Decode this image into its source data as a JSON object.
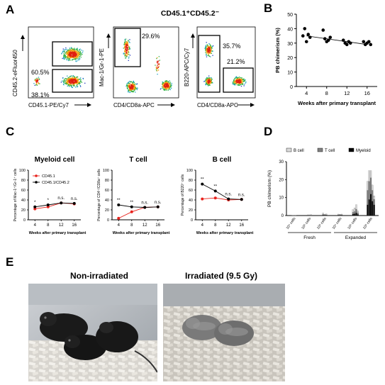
{
  "panel_labels": {
    "a": "A",
    "b": "B",
    "c": "C",
    "d": "D",
    "e": "E"
  },
  "flow": {
    "subtitle": "CD45.1⁺CD45.2⁻",
    "plot1": {
      "ylabel": "CD45.2-eFluor450",
      "xlabel": "CD45.1-PE/Cy7",
      "gate_top": "60.5%",
      "gate_bottom": "38.1%"
    },
    "plot2": {
      "ylabel": "Mac-1/Gr-1-PE",
      "xlabel": "CD4/CD8a-APC",
      "gate": "29.6%"
    },
    "plot3": {
      "ylabel": "B220-APC/Cy7",
      "xlabel": "CD4/CD8a-APC",
      "gate_top": "35.7%",
      "gate_bottom": "21.2%"
    }
  },
  "colors": {
    "red": "#e8221c",
    "black": "#000000",
    "bcell": "#d9d9d9",
    "tcell": "#808080",
    "myeloid": "#000000"
  },
  "chart_data": [
    {
      "type": "scatter",
      "panel": "B",
      "xlabel": "Weeks after primary transplant",
      "ylabel": "PB chimerism (%)",
      "xticks": [
        4,
        8,
        12,
        16
      ],
      "ylim": [
        0,
        50
      ],
      "yticks": [
        0,
        10,
        20,
        30,
        40,
        50
      ],
      "points": [
        {
          "x": 4,
          "y": 35
        },
        {
          "x": 4,
          "y": 40
        },
        {
          "x": 4,
          "y": 31
        },
        {
          "x": 4,
          "y": 36
        },
        {
          "x": 4,
          "y": 34
        },
        {
          "x": 8,
          "y": 39
        },
        {
          "x": 8,
          "y": 33
        },
        {
          "x": 8,
          "y": 31
        },
        {
          "x": 8,
          "y": 32
        },
        {
          "x": 8,
          "y": 34
        },
        {
          "x": 12,
          "y": 32
        },
        {
          "x": 12,
          "y": 30
        },
        {
          "x": 12,
          "y": 29
        },
        {
          "x": 12,
          "y": 31
        },
        {
          "x": 12,
          "y": 30
        },
        {
          "x": 16,
          "y": 31
        },
        {
          "x": 16,
          "y": 29
        },
        {
          "x": 16,
          "y": 30
        },
        {
          "x": 16,
          "y": 31
        },
        {
          "x": 16,
          "y": 29
        }
      ],
      "trend": [
        {
          "x": 4,
          "y": 35
        },
        {
          "x": 16,
          "y": 29
        }
      ]
    },
    {
      "type": "line",
      "panel": "C",
      "title": "Myeloid cell",
      "xlabel": "Weeks after primary transplant",
      "ylabel": "Percentage of Mac-1⁺/Gr-1⁺ cells",
      "x": [
        4,
        8,
        12,
        16
      ],
      "ylim": [
        0,
        100
      ],
      "yticks": [
        0,
        20,
        40,
        60,
        80,
        100
      ],
      "legend": [
        "CD45.1",
        "CD45.1/CD45.2"
      ],
      "series": [
        {
          "name": "CD45.1",
          "values": [
            22,
            26,
            34,
            32
          ]
        },
        {
          "name": "CD45.1/CD45.2",
          "values": [
            26,
            30,
            34,
            33
          ]
        }
      ],
      "sig": [
        "*",
        "*",
        "n.s.",
        "n.s."
      ]
    },
    {
      "type": "line",
      "panel": "C",
      "title": "T cell",
      "xlabel": "Weeks after primary transplant",
      "ylabel": "Percentage of CD4⁺/CD8a⁺ cells",
      "x": [
        4,
        8,
        12,
        16
      ],
      "ylim": [
        0,
        100
      ],
      "yticks": [
        0,
        20,
        40,
        60,
        80,
        100
      ],
      "series": [
        {
          "name": "CD45.1",
          "values": [
            3,
            16,
            25,
            26
          ]
        },
        {
          "name": "CD45.1/CD45.2",
          "values": [
            30,
            26,
            25,
            26
          ]
        }
      ],
      "sig": [
        "**",
        "**",
        "n.s.",
        "n.s."
      ]
    },
    {
      "type": "line",
      "panel": "C",
      "title": "B cell",
      "xlabel": "Weeks after primary transplant",
      "ylabel": "Percentage of B220⁺ cells",
      "x": [
        4,
        8,
        12,
        16
      ],
      "ylim": [
        0,
        100
      ],
      "yticks": [
        0,
        20,
        40,
        60,
        80,
        100
      ],
      "series": [
        {
          "name": "CD45.1",
          "values": [
            42,
            44,
            40,
            41
          ]
        },
        {
          "name": "CD45.1/CD45.2",
          "values": [
            72,
            58,
            42,
            41
          ]
        }
      ],
      "sig": [
        "**",
        "**",
        "n.s.",
        "n.s."
      ]
    },
    {
      "type": "bar",
      "panel": "D",
      "ylabel": "PB chimerism (%)",
      "ylim": [
        0,
        30
      ],
      "yticks": [
        0,
        10,
        20,
        30
      ],
      "legend": [
        "B cell",
        "T cell",
        "Myeloid"
      ],
      "categories": [
        "10⁴ cells",
        "10⁵ cells",
        "10⁶ cells",
        "10⁴ cells",
        "10⁵ cells",
        "10⁶ cells"
      ],
      "groups": [
        {
          "label": "Fresh",
          "span": [
            0,
            2
          ]
        },
        {
          "label": "Expanded",
          "span": [
            3,
            5
          ]
        }
      ],
      "bars": [
        [
          {
            "b": 0.1,
            "t": 0.05,
            "m": 0.05
          },
          {
            "b": 0.1,
            "t": 0.05,
            "m": 0.05
          },
          {
            "b": 0.1,
            "t": 0.05,
            "m": 0.05
          }
        ],
        [
          {
            "b": 0.2,
            "t": 0.1,
            "m": 0.1
          },
          {
            "b": 0.2,
            "t": 0.1,
            "m": 0.1
          },
          {
            "b": 0.3,
            "t": 0.1,
            "m": 0.1
          }
        ],
        [
          {
            "b": 0.8,
            "t": 0.3,
            "m": 0.3
          },
          {
            "b": 0.3,
            "t": 0.2,
            "m": 0.2
          },
          {
            "b": 0.5,
            "t": 0.2,
            "m": 0.2
          }
        ],
        [
          {
            "b": 0.4,
            "t": 0.2,
            "m": 0.2
          },
          {
            "b": 0.3,
            "t": 0.2,
            "m": 0.2
          },
          {
            "b": 0.4,
            "t": 0.2,
            "m": 0.2
          }
        ],
        [
          {
            "b": 1.5,
            "t": 1.0,
            "m": 0.8
          },
          {
            "b": 2.0,
            "t": 1.2,
            "m": 1.0
          },
          {
            "b": 2.5,
            "t": 2.0,
            "m": 1.5
          },
          {
            "b": 1.2,
            "t": 0.8,
            "m": 0.6
          }
        ],
        [
          {
            "b": 5.0,
            "t": 8.0,
            "m": 6.0
          },
          {
            "b": 6.0,
            "t": 10.0,
            "m": 9.0
          },
          {
            "b": 4.0,
            "t": 9.0,
            "m": 12.0
          },
          {
            "b": 3.0,
            "t": 6.0,
            "m": 8.0
          },
          {
            "b": 2.0,
            "t": 3.0,
            "m": 6.0
          }
        ]
      ]
    }
  ],
  "photos": {
    "left_title": "Non-irradiated",
    "right_title": "Irradiated (9.5 Gy)"
  }
}
